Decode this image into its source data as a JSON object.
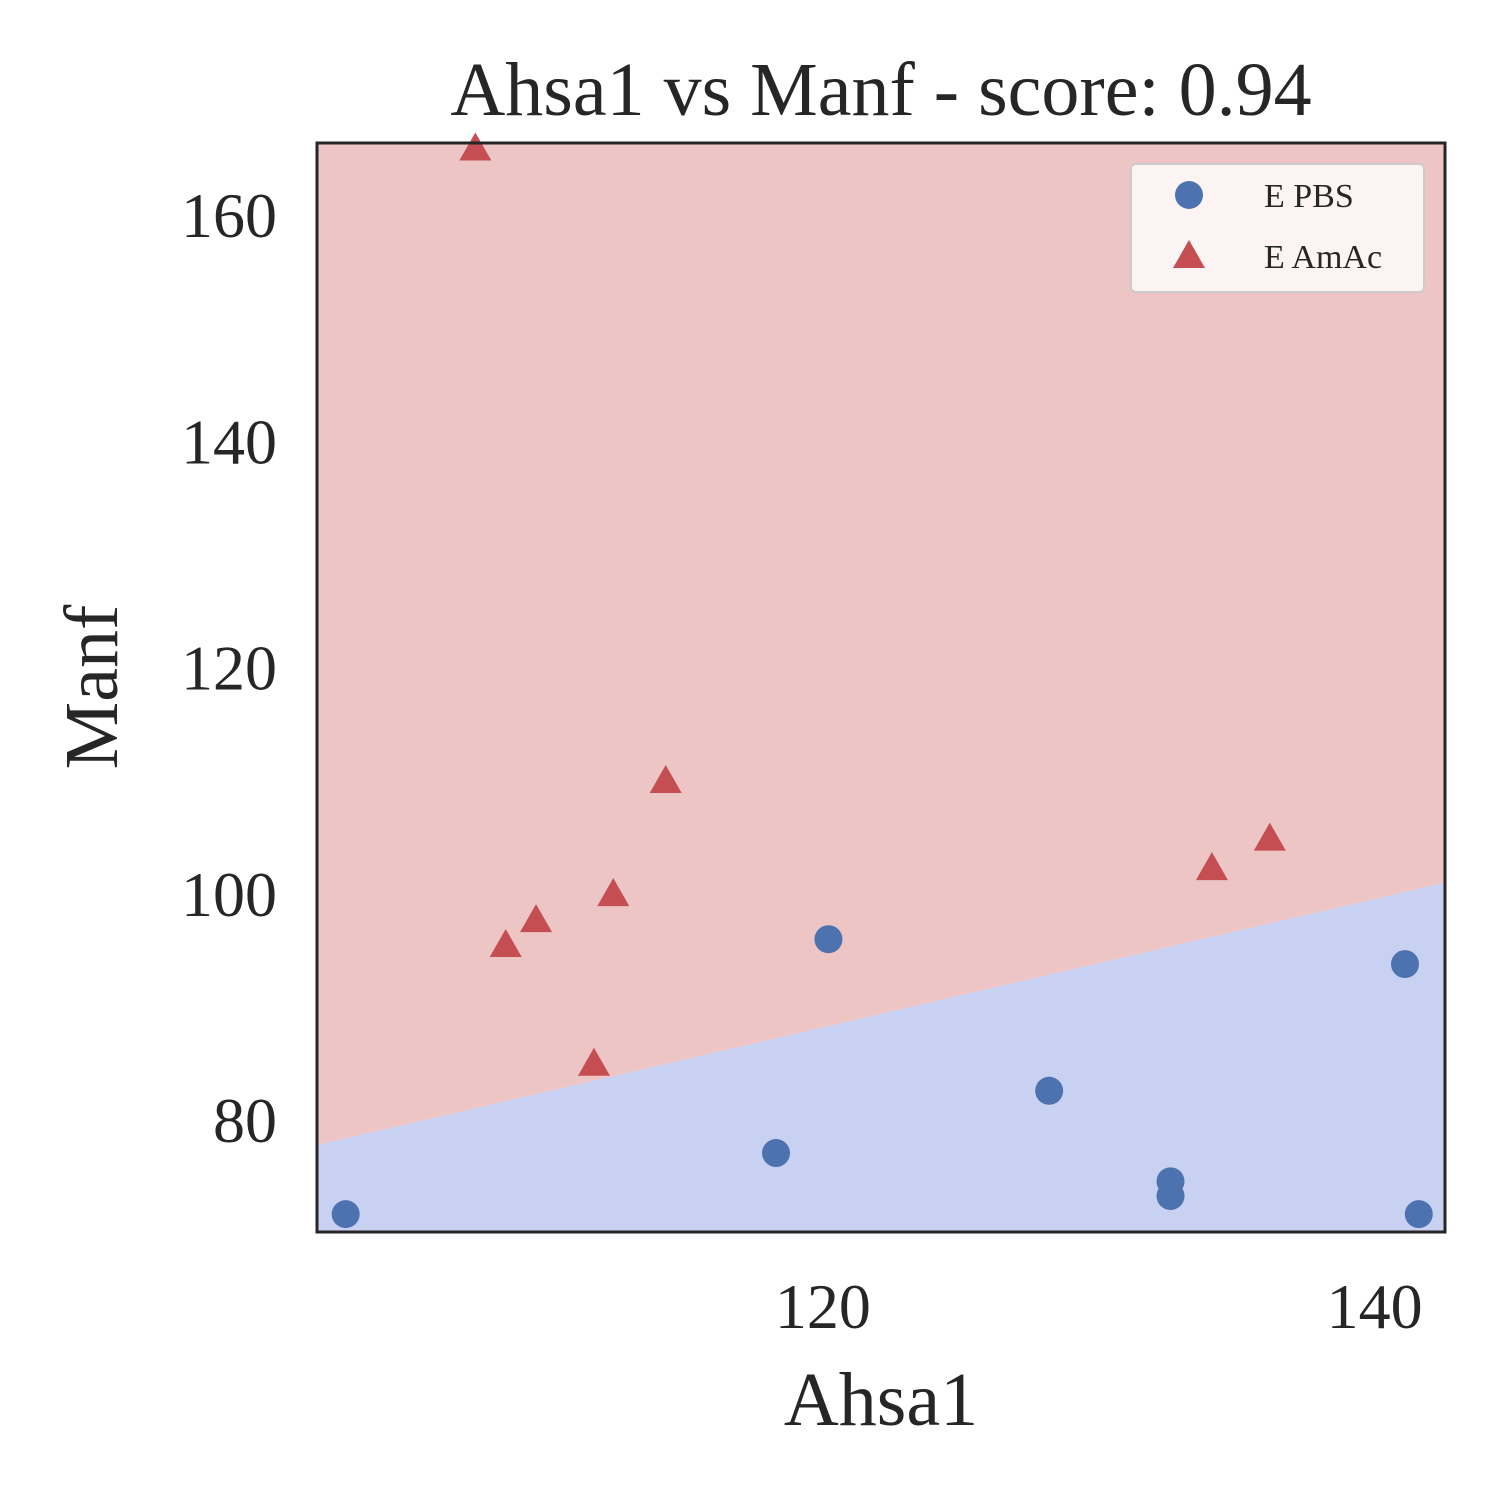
{
  "chart_data": {
    "type": "scatter",
    "title": "Ahsa1 vs Manf - score: 0.94",
    "xlabel": "Ahsa1",
    "ylabel": "Manf",
    "xlim": [
      101.66,
      142.55
    ],
    "ylim": [
      70.12,
      166.38
    ],
    "xticks": [
      120,
      140
    ],
    "yticks": [
      80,
      100,
      120,
      140,
      160
    ],
    "grid": false,
    "legend_position": "top-right",
    "colors": {
      "E PBS": "#4c72b0",
      "E AmAc": "#c44e52",
      "region_PBS": "#c9d1f2",
      "region_AmAc": "#edc5c4"
    },
    "decision_boundary": [
      [
        101.66,
        77.8
      ],
      [
        142.55,
        101.0
      ]
    ],
    "series": [
      {
        "name": "E PBS",
        "marker": "circle",
        "x": [
          102.7,
          118.3,
          120.2,
          128.2,
          132.6,
          132.6,
          141.1,
          141.6
        ],
        "y": [
          71.7,
          77.1,
          96.0,
          82.6,
          74.6,
          73.3,
          93.8,
          71.7
        ]
      },
      {
        "name": "E AmAc",
        "marker": "triangle",
        "x": [
          107.4,
          108.5,
          109.6,
          111.7,
          112.4,
          114.3,
          134.1,
          136.2
        ],
        "y": [
          165.8,
          95.4,
          97.6,
          84.9,
          99.9,
          109.9,
          102.2,
          104.8
        ]
      }
    ]
  }
}
